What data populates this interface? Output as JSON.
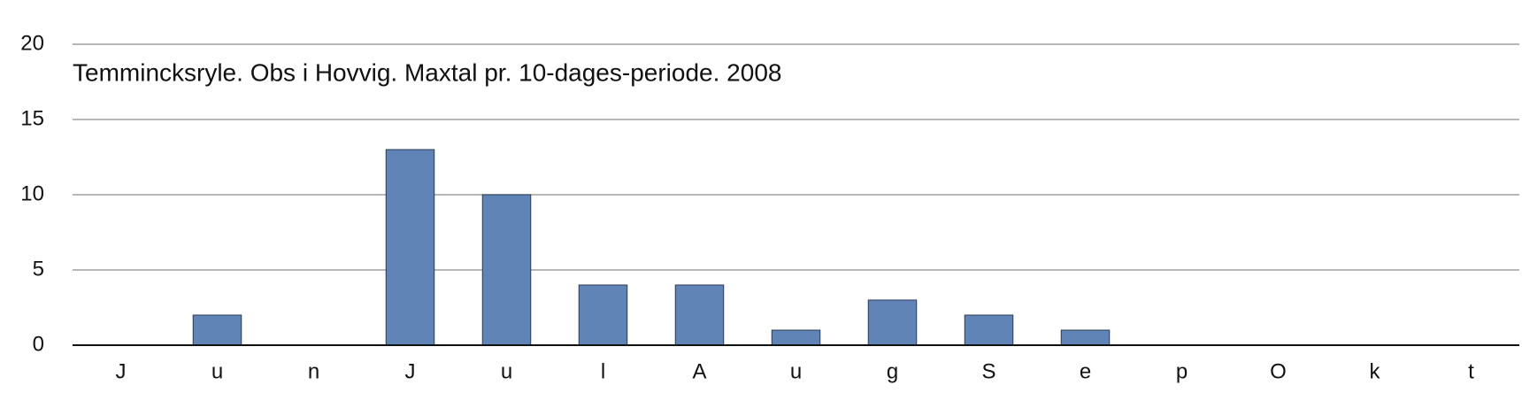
{
  "chart_data": {
    "type": "bar",
    "title": "Temmincksryle. Obs i Hovvig. Maxtal pr. 10-dages-periode. 2008",
    "categories": [
      "J",
      "u",
      "n",
      "J",
      "u",
      "l",
      "A",
      "u",
      "g",
      "S",
      "e",
      "p",
      "O",
      "k",
      "t"
    ],
    "values": [
      0,
      2,
      0,
      13,
      10,
      4,
      4,
      1,
      3,
      2,
      1,
      0,
      0,
      0,
      0
    ],
    "color": "#6184b7",
    "ylim": [
      0,
      20
    ],
    "yticks": [
      0,
      5,
      10,
      15,
      20
    ],
    "grid": true
  }
}
